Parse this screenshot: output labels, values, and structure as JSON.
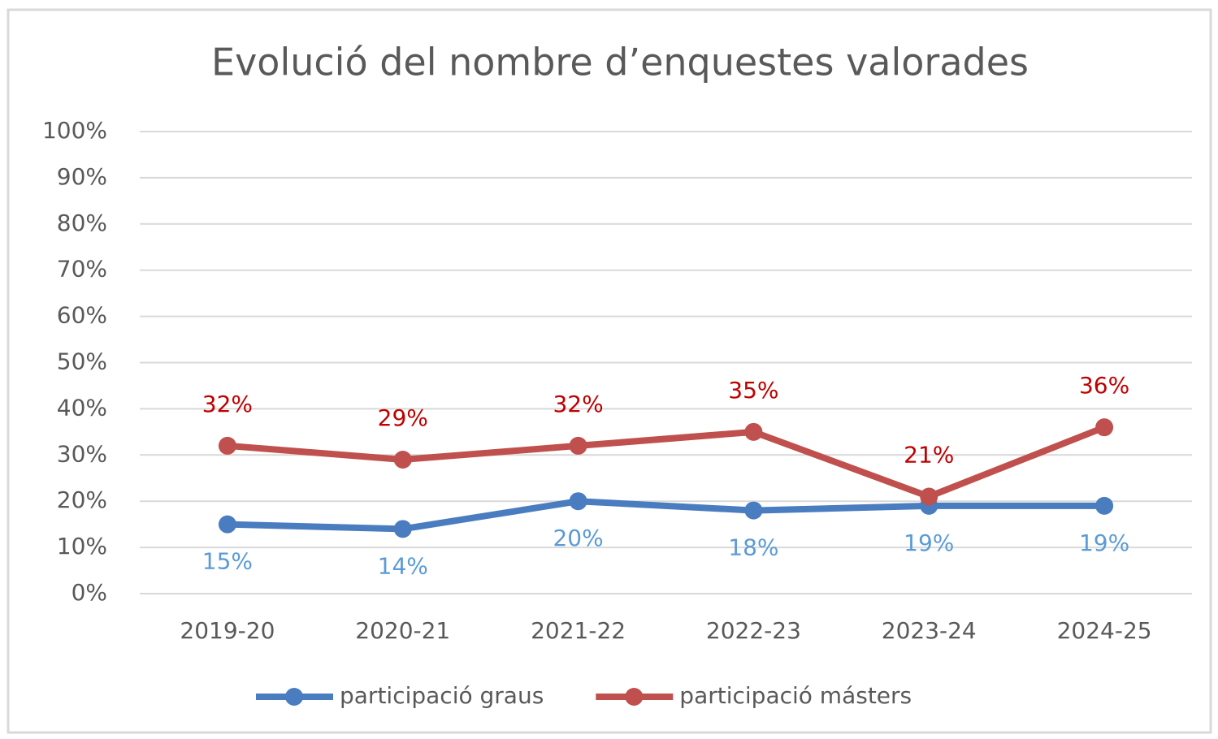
{
  "chart_data": {
    "type": "line",
    "title": "Evolució del nombre d’enquestes valorades",
    "categories": [
      "2019-20",
      "2020-21",
      "2021-22",
      "2022-23",
      "2023-24",
      "2024-25"
    ],
    "series": [
      {
        "name": "participació graus",
        "color": "#4a7cc0",
        "label_color": "#5b9bd5",
        "label_position": "below",
        "values": [
          15,
          14,
          20,
          18,
          19,
          19
        ],
        "value_labels": [
          "15%",
          "14%",
          "20%",
          "18%",
          "19%",
          "19%"
        ]
      },
      {
        "name": "participació másters",
        "color": "#c0504d",
        "label_color": "#c00000",
        "label_position": "above",
        "values": [
          32,
          29,
          32,
          35,
          21,
          36
        ],
        "value_labels": [
          "32%",
          "29%",
          "32%",
          "35%",
          "21%",
          "36%"
        ]
      }
    ],
    "ylim": [
      0,
      100
    ],
    "yticks": [
      {
        "value": 0,
        "label": "0%"
      },
      {
        "value": 10,
        "label": "10%"
      },
      {
        "value": 20,
        "label": "20%"
      },
      {
        "value": 30,
        "label": "30%"
      },
      {
        "value": 40,
        "label": "40%"
      },
      {
        "value": 50,
        "label": "50%"
      },
      {
        "value": 60,
        "label": "60%"
      },
      {
        "value": 70,
        "label": "70%"
      },
      {
        "value": 80,
        "label": "80%"
      },
      {
        "value": 90,
        "label": "90%"
      },
      {
        "value": 100,
        "label": "100%"
      }
    ],
    "grid": true,
    "legend": "bottom"
  }
}
